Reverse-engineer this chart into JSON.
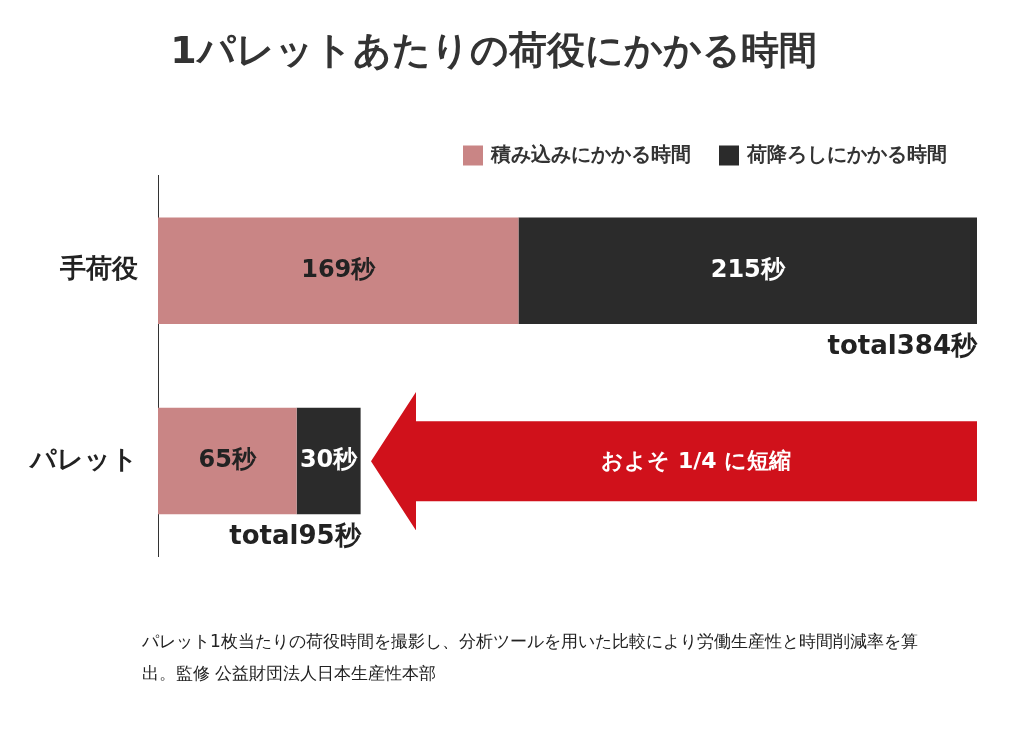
{
  "chart_data": {
    "type": "bar",
    "title": "1パレットあたりの荷役にかかる時間",
    "orientation": "horizontal",
    "stacked": true,
    "legend": "top right",
    "categories": [
      "手荷役",
      "パレット"
    ],
    "series": [
      {
        "name": "積み込みにかかる時間",
        "color": "#c98585",
        "values": [
          169,
          65
        ],
        "value_labels": [
          "169秒",
          "65秒"
        ]
      },
      {
        "name": "荷降ろしにかかる時間",
        "color": "#2b2b2b",
        "values": [
          215,
          30
        ],
        "value_labels": [
          "215秒",
          "30秒"
        ]
      }
    ],
    "totals": [
      "total384秒",
      "total95秒"
    ],
    "annotations": [
      "およそ 1/4 に短縮",
      "パレット1枚当たりの荷役時間を撮影し、分析ツールを用いた比較により労働生産性と時間削減率を算出。監修 公益財団法人日本生産性本部"
    ]
  }
}
